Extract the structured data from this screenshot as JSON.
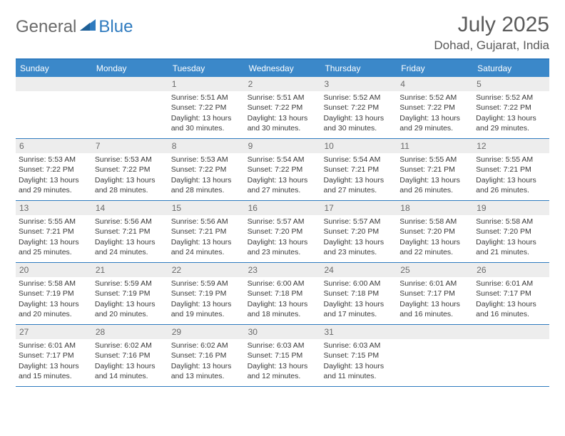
{
  "logo": {
    "part1": "General",
    "part2": "Blue"
  },
  "title": "July 2025",
  "location": "Dohad, Gujarat, India",
  "colors": {
    "header_bg": "#3b88c9",
    "border": "#2f7bbf",
    "daynum_bg": "#ededed",
    "text": "#3a3a3a",
    "logo_gray": "#6a6a6a",
    "logo_blue": "#2f7bbf"
  },
  "day_names": [
    "Sunday",
    "Monday",
    "Tuesday",
    "Wednesday",
    "Thursday",
    "Friday",
    "Saturday"
  ],
  "weeks": [
    [
      {
        "n": "",
        "sr": "",
        "ss": "",
        "dl": ""
      },
      {
        "n": "",
        "sr": "",
        "ss": "",
        "dl": ""
      },
      {
        "n": "1",
        "sr": "Sunrise: 5:51 AM",
        "ss": "Sunset: 7:22 PM",
        "dl": "Daylight: 13 hours and 30 minutes."
      },
      {
        "n": "2",
        "sr": "Sunrise: 5:51 AM",
        "ss": "Sunset: 7:22 PM",
        "dl": "Daylight: 13 hours and 30 minutes."
      },
      {
        "n": "3",
        "sr": "Sunrise: 5:52 AM",
        "ss": "Sunset: 7:22 PM",
        "dl": "Daylight: 13 hours and 30 minutes."
      },
      {
        "n": "4",
        "sr": "Sunrise: 5:52 AM",
        "ss": "Sunset: 7:22 PM",
        "dl": "Daylight: 13 hours and 29 minutes."
      },
      {
        "n": "5",
        "sr": "Sunrise: 5:52 AM",
        "ss": "Sunset: 7:22 PM",
        "dl": "Daylight: 13 hours and 29 minutes."
      }
    ],
    [
      {
        "n": "6",
        "sr": "Sunrise: 5:53 AM",
        "ss": "Sunset: 7:22 PM",
        "dl": "Daylight: 13 hours and 29 minutes."
      },
      {
        "n": "7",
        "sr": "Sunrise: 5:53 AM",
        "ss": "Sunset: 7:22 PM",
        "dl": "Daylight: 13 hours and 28 minutes."
      },
      {
        "n": "8",
        "sr": "Sunrise: 5:53 AM",
        "ss": "Sunset: 7:22 PM",
        "dl": "Daylight: 13 hours and 28 minutes."
      },
      {
        "n": "9",
        "sr": "Sunrise: 5:54 AM",
        "ss": "Sunset: 7:22 PM",
        "dl": "Daylight: 13 hours and 27 minutes."
      },
      {
        "n": "10",
        "sr": "Sunrise: 5:54 AM",
        "ss": "Sunset: 7:21 PM",
        "dl": "Daylight: 13 hours and 27 minutes."
      },
      {
        "n": "11",
        "sr": "Sunrise: 5:55 AM",
        "ss": "Sunset: 7:21 PM",
        "dl": "Daylight: 13 hours and 26 minutes."
      },
      {
        "n": "12",
        "sr": "Sunrise: 5:55 AM",
        "ss": "Sunset: 7:21 PM",
        "dl": "Daylight: 13 hours and 26 minutes."
      }
    ],
    [
      {
        "n": "13",
        "sr": "Sunrise: 5:55 AM",
        "ss": "Sunset: 7:21 PM",
        "dl": "Daylight: 13 hours and 25 minutes."
      },
      {
        "n": "14",
        "sr": "Sunrise: 5:56 AM",
        "ss": "Sunset: 7:21 PM",
        "dl": "Daylight: 13 hours and 24 minutes."
      },
      {
        "n": "15",
        "sr": "Sunrise: 5:56 AM",
        "ss": "Sunset: 7:21 PM",
        "dl": "Daylight: 13 hours and 24 minutes."
      },
      {
        "n": "16",
        "sr": "Sunrise: 5:57 AM",
        "ss": "Sunset: 7:20 PM",
        "dl": "Daylight: 13 hours and 23 minutes."
      },
      {
        "n": "17",
        "sr": "Sunrise: 5:57 AM",
        "ss": "Sunset: 7:20 PM",
        "dl": "Daylight: 13 hours and 23 minutes."
      },
      {
        "n": "18",
        "sr": "Sunrise: 5:58 AM",
        "ss": "Sunset: 7:20 PM",
        "dl": "Daylight: 13 hours and 22 minutes."
      },
      {
        "n": "19",
        "sr": "Sunrise: 5:58 AM",
        "ss": "Sunset: 7:20 PM",
        "dl": "Daylight: 13 hours and 21 minutes."
      }
    ],
    [
      {
        "n": "20",
        "sr": "Sunrise: 5:58 AM",
        "ss": "Sunset: 7:19 PM",
        "dl": "Daylight: 13 hours and 20 minutes."
      },
      {
        "n": "21",
        "sr": "Sunrise: 5:59 AM",
        "ss": "Sunset: 7:19 PM",
        "dl": "Daylight: 13 hours and 20 minutes."
      },
      {
        "n": "22",
        "sr": "Sunrise: 5:59 AM",
        "ss": "Sunset: 7:19 PM",
        "dl": "Daylight: 13 hours and 19 minutes."
      },
      {
        "n": "23",
        "sr": "Sunrise: 6:00 AM",
        "ss": "Sunset: 7:18 PM",
        "dl": "Daylight: 13 hours and 18 minutes."
      },
      {
        "n": "24",
        "sr": "Sunrise: 6:00 AM",
        "ss": "Sunset: 7:18 PM",
        "dl": "Daylight: 13 hours and 17 minutes."
      },
      {
        "n": "25",
        "sr": "Sunrise: 6:01 AM",
        "ss": "Sunset: 7:17 PM",
        "dl": "Daylight: 13 hours and 16 minutes."
      },
      {
        "n": "26",
        "sr": "Sunrise: 6:01 AM",
        "ss": "Sunset: 7:17 PM",
        "dl": "Daylight: 13 hours and 16 minutes."
      }
    ],
    [
      {
        "n": "27",
        "sr": "Sunrise: 6:01 AM",
        "ss": "Sunset: 7:17 PM",
        "dl": "Daylight: 13 hours and 15 minutes."
      },
      {
        "n": "28",
        "sr": "Sunrise: 6:02 AM",
        "ss": "Sunset: 7:16 PM",
        "dl": "Daylight: 13 hours and 14 minutes."
      },
      {
        "n": "29",
        "sr": "Sunrise: 6:02 AM",
        "ss": "Sunset: 7:16 PM",
        "dl": "Daylight: 13 hours and 13 minutes."
      },
      {
        "n": "30",
        "sr": "Sunrise: 6:03 AM",
        "ss": "Sunset: 7:15 PM",
        "dl": "Daylight: 13 hours and 12 minutes."
      },
      {
        "n": "31",
        "sr": "Sunrise: 6:03 AM",
        "ss": "Sunset: 7:15 PM",
        "dl": "Daylight: 13 hours and 11 minutes."
      },
      {
        "n": "",
        "sr": "",
        "ss": "",
        "dl": ""
      },
      {
        "n": "",
        "sr": "",
        "ss": "",
        "dl": ""
      }
    ]
  ]
}
